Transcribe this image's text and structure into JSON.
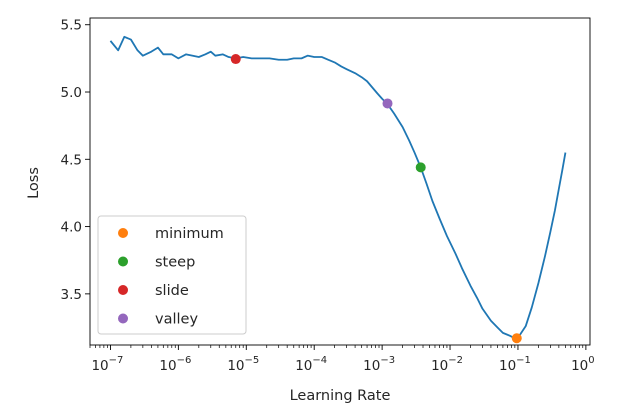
{
  "chart_data": {
    "type": "line",
    "xlabel": "Learning Rate",
    "ylabel": "Loss",
    "xscale": "log",
    "xlim": [
      5e-08,
      1.15
    ],
    "ylim": [
      3.12,
      5.55
    ],
    "grid": false,
    "legend_position": "lower-left",
    "x_ticks": [
      {
        "value": 1e-07,
        "base": "10",
        "exp": "−7"
      },
      {
        "value": 1e-06,
        "base": "10",
        "exp": "−6"
      },
      {
        "value": 1e-05,
        "base": "10",
        "exp": "−5"
      },
      {
        "value": 0.0001,
        "base": "10",
        "exp": "−4"
      },
      {
        "value": 0.001,
        "base": "10",
        "exp": "−3"
      },
      {
        "value": 0.01,
        "base": "10",
        "exp": "−2"
      },
      {
        "value": 0.1,
        "base": "10",
        "exp": "−1"
      },
      {
        "value": 1,
        "base": "10",
        "exp": "0"
      }
    ],
    "y_ticks": [
      {
        "value": 3.5,
        "label": "3.5"
      },
      {
        "value": 4.0,
        "label": "4.0"
      },
      {
        "value": 4.5,
        "label": "4.5"
      },
      {
        "value": 5.0,
        "label": "5.0"
      },
      {
        "value": 5.5,
        "label": "5.5"
      }
    ],
    "series": [
      {
        "color": "#1f77b4",
        "points": [
          [
            1e-07,
            5.38
          ],
          [
            1.3e-07,
            5.31
          ],
          [
            1.6e-07,
            5.41
          ],
          [
            2e-07,
            5.39
          ],
          [
            2.5e-07,
            5.31
          ],
          [
            3e-07,
            5.27
          ],
          [
            4e-07,
            5.3
          ],
          [
            5e-07,
            5.33
          ],
          [
            6e-07,
            5.28
          ],
          [
            8e-07,
            5.28
          ],
          [
            1e-06,
            5.25
          ],
          [
            1.3e-06,
            5.28
          ],
          [
            1.6e-06,
            5.27
          ],
          [
            2e-06,
            5.26
          ],
          [
            2.5e-06,
            5.28
          ],
          [
            3e-06,
            5.3
          ],
          [
            3.5e-06,
            5.27
          ],
          [
            4.5e-06,
            5.28
          ],
          [
            5.5e-06,
            5.26
          ],
          [
            7e-06,
            5.25
          ],
          [
            9e-06,
            5.26
          ],
          [
            1.2e-05,
            5.25
          ],
          [
            1.6e-05,
            5.25
          ],
          [
            2.2e-05,
            5.25
          ],
          [
            3e-05,
            5.24
          ],
          [
            4e-05,
            5.24
          ],
          [
            5e-05,
            5.25
          ],
          [
            6.5e-05,
            5.25
          ],
          [
            8e-05,
            5.27
          ],
          [
            0.0001,
            5.26
          ],
          [
            0.00013,
            5.26
          ],
          [
            0.00016,
            5.24
          ],
          [
            0.0002,
            5.22
          ],
          [
            0.00025,
            5.19
          ],
          [
            0.0003,
            5.17
          ],
          [
            0.0004,
            5.14
          ],
          [
            0.0005,
            5.11
          ],
          [
            0.0006,
            5.08
          ],
          [
            0.0007,
            5.04
          ],
          [
            0.00085,
            4.99
          ],
          [
            0.001,
            4.95
          ],
          [
            0.0012,
            4.91
          ],
          [
            0.0015,
            4.84
          ],
          [
            0.002,
            4.74
          ],
          [
            0.0025,
            4.64
          ],
          [
            0.003,
            4.55
          ],
          [
            0.0037,
            4.44
          ],
          [
            0.0045,
            4.32
          ],
          [
            0.0055,
            4.19
          ],
          [
            0.007,
            4.06
          ],
          [
            0.009,
            3.93
          ],
          [
            0.012,
            3.8
          ],
          [
            0.015,
            3.69
          ],
          [
            0.02,
            3.56
          ],
          [
            0.025,
            3.47
          ],
          [
            0.03,
            3.39
          ],
          [
            0.04,
            3.3
          ],
          [
            0.05,
            3.25
          ],
          [
            0.06,
            3.21
          ],
          [
            0.075,
            3.19
          ],
          [
            0.09,
            3.17
          ],
          [
            0.105,
            3.19
          ],
          [
            0.13,
            3.26
          ],
          [
            0.16,
            3.4
          ],
          [
            0.2,
            3.58
          ],
          [
            0.25,
            3.78
          ],
          [
            0.3,
            3.96
          ],
          [
            0.35,
            4.12
          ],
          [
            0.4,
            4.28
          ],
          [
            0.45,
            4.42
          ],
          [
            0.5,
            4.55
          ]
        ]
      }
    ],
    "markers": [
      {
        "name": "minimum",
        "x": 0.096,
        "y": 3.17,
        "color": "#ff7f0e"
      },
      {
        "name": "steep",
        "x": 0.0037,
        "y": 4.44,
        "color": "#2ca02c"
      },
      {
        "name": "slide",
        "x": 7e-06,
        "y": 5.245,
        "color": "#d62728"
      },
      {
        "name": "valley",
        "x": 0.0012,
        "y": 4.915,
        "color": "#9467bd"
      }
    ]
  }
}
